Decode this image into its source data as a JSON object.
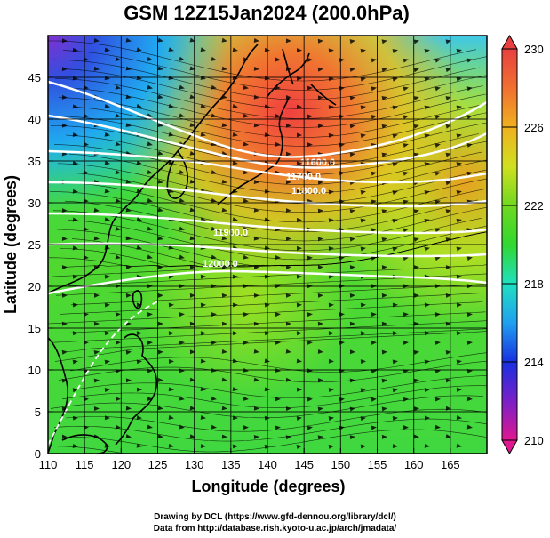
{
  "title": "GSM 12Z15Jan2024 (200.0hPa)",
  "credits": {
    "line1": "Drawing by DCL (https://www.gfd-dennou.org/library/dcl/)",
    "line2": "Data from http://database.rish.kyoto-u.ac.jp/arch/jmadata/"
  },
  "chart_data": {
    "type": "heatmap",
    "xlabel": "Longitude (degrees)",
    "ylabel": "Latitude  (degrees)",
    "xlim": [
      110,
      170
    ],
    "ylim": [
      0,
      50
    ],
    "x_ticks": [
      "110",
      "115",
      "120",
      "125",
      "130",
      "135",
      "140",
      "145",
      "150",
      "155",
      "160",
      "165"
    ],
    "y_ticks": [
      "0",
      "5",
      "10",
      "15",
      "20",
      "25",
      "30",
      "35",
      "40",
      "45"
    ],
    "grid": true,
    "colorbar": {
      "ticks": [
        "210",
        "214",
        "218",
        "222",
        "226",
        "230"
      ],
      "range": [
        210,
        230
      ],
      "colors": [
        "#e01890",
        "#7a20c8",
        "#1830e0",
        "#20a0f0",
        "#20e0c0",
        "#30d830",
        "#70d820",
        "#d0e020",
        "#f0b020",
        "#f07030",
        "#e84040"
      ]
    },
    "contours": [
      {
        "label": "11600.0",
        "lat_at_110": 31
      },
      {
        "label": "11700.0",
        "lat_at_110": 38
      },
      {
        "label": "11800.0",
        "lat_at_110": 40
      },
      {
        "label": "12000.0",
        "lat_at_110": 27
      }
    ],
    "contour_labels": [
      "11600.0",
      "11700.0",
      "11800.0",
      "11900.0",
      "12000.0"
    ]
  }
}
